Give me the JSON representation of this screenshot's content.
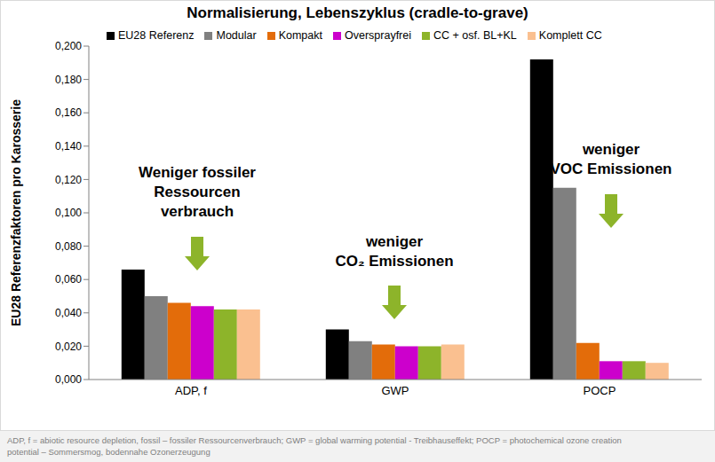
{
  "chart_data": {
    "type": "bar",
    "title": "Normalisierung, Lebenszyklus (cradle-to-grave)",
    "categories": [
      "ADP, f",
      "GWP",
      "POCP"
    ],
    "series": [
      {
        "name": "EU28 Referenz",
        "color": "#000000",
        "values": [
          0.066,
          0.03,
          0.192
        ]
      },
      {
        "name": "Modular",
        "color": "#808080",
        "values": [
          0.05,
          0.023,
          0.115
        ]
      },
      {
        "name": "Kompakt",
        "color": "#e36c0a",
        "values": [
          0.046,
          0.021,
          0.022
        ]
      },
      {
        "name": "Oversprayfrei",
        "color": "#cc00cc",
        "values": [
          0.044,
          0.02,
          0.011
        ]
      },
      {
        "name": "CC + osf. BL+KL",
        "color": "#8db42a",
        "values": [
          0.042,
          0.02,
          0.011
        ]
      },
      {
        "name": "Komplett CC",
        "color": "#fac090",
        "values": [
          0.042,
          0.021,
          0.01
        ]
      }
    ],
    "ylabel": "EU28 Referenzfaktoren pro Karosserie",
    "ylim": [
      0,
      0.2
    ],
    "yticks": [
      {
        "value": 0,
        "label": "0,000"
      },
      {
        "value": 0.02,
        "label": "0,020"
      },
      {
        "value": 0.04,
        "label": "0,040"
      },
      {
        "value": 0.06,
        "label": "0,060"
      },
      {
        "value": 0.08,
        "label": "0,080"
      },
      {
        "value": 0.1,
        "label": "0,100"
      },
      {
        "value": 0.12,
        "label": "0,120"
      },
      {
        "value": 0.14,
        "label": "0,140"
      },
      {
        "value": 0.16,
        "label": "0,160"
      },
      {
        "value": 0.18,
        "label": "0,180"
      },
      {
        "value": 0.2,
        "label": "0,200"
      }
    ],
    "grid": false,
    "legend": "top",
    "annotations": [
      {
        "text": [
          "Weniger fossiler",
          "Ressourcen",
          "verbrauch"
        ]
      },
      {
        "text": [
          "weniger",
          "CO₂ Emissionen"
        ]
      },
      {
        "text": [
          "weniger",
          "VOC Emissionen"
        ]
      }
    ],
    "footnote": [
      "ADP, f = abiotic resource depletion, fossil – fossiler Ressourcenverbrauch; GWP = global warming potential - Treibhauseffekt; POCP = photochemical ozone creation",
      "potential – Sommersmog, bodennahe Ozonerzeugung"
    ]
  }
}
